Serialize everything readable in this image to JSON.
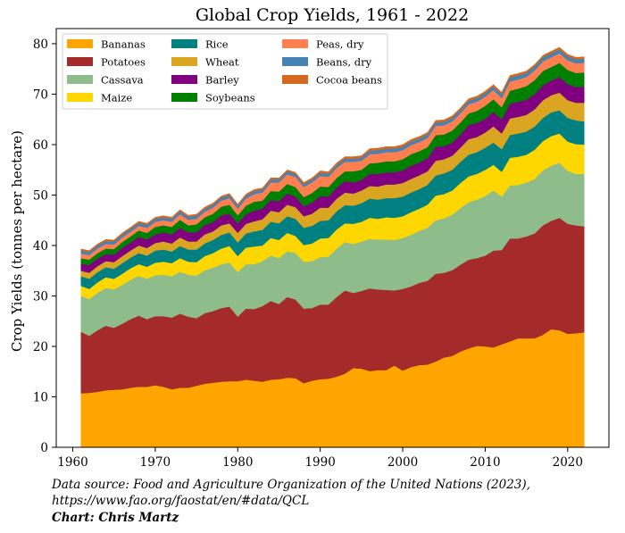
{
  "chart_data": {
    "type": "area",
    "stacked": true,
    "title": "Global Crop Yields, 1961 - 2022",
    "xlabel": "",
    "ylabel": "Crop Yields (tonnes per hectare)",
    "xlim": [
      1958,
      2025
    ],
    "ylim": [
      0,
      83
    ],
    "xticks": [
      1960,
      1970,
      1980,
      1990,
      2000,
      2010,
      2020
    ],
    "yticks": [
      0,
      10,
      20,
      30,
      40,
      50,
      60,
      70,
      80
    ],
    "legend_position": "top-left",
    "x": [
      1961,
      1962,
      1963,
      1964,
      1965,
      1966,
      1967,
      1968,
      1969,
      1970,
      1971,
      1972,
      1973,
      1974,
      1975,
      1976,
      1977,
      1978,
      1979,
      1980,
      1981,
      1982,
      1983,
      1984,
      1985,
      1986,
      1987,
      1988,
      1989,
      1990,
      1991,
      1992,
      1993,
      1994,
      1995,
      1996,
      1997,
      1998,
      1999,
      2000,
      2001,
      2002,
      2003,
      2004,
      2005,
      2006,
      2007,
      2008,
      2009,
      2010,
      2011,
      2012,
      2013,
      2014,
      2015,
      2016,
      2017,
      2018,
      2019,
      2020,
      2021,
      2022
    ],
    "series": [
      {
        "name": "Bananas",
        "color": "#FFA500",
        "values": [
          10.7,
          10.8,
          11.0,
          11.3,
          11.4,
          11.5,
          11.8,
          12.0,
          12.0,
          12.3,
          12.0,
          11.5,
          11.8,
          11.8,
          12.2,
          12.6,
          12.8,
          13.0,
          13.1,
          13.1,
          13.4,
          13.2,
          13.0,
          13.4,
          13.5,
          13.8,
          13.7,
          12.7,
          13.2,
          13.5,
          13.6,
          14.0,
          14.6,
          15.7,
          15.6,
          15.1,
          15.3,
          15.3,
          16.2,
          15.2,
          15.9,
          16.3,
          16.4,
          17.0,
          17.8,
          18.1,
          19.0,
          19.6,
          20.1,
          20.0,
          19.8,
          20.4,
          21.0,
          21.6,
          21.6,
          21.6,
          22.3,
          23.4,
          23.2,
          22.5,
          22.6,
          22.8
        ]
      },
      {
        "name": "Potatoes",
        "color": "#A52A2A",
        "values": [
          12.2,
          11.3,
          12.2,
          12.8,
          12.3,
          13.0,
          13.6,
          14.1,
          13.4,
          13.7,
          14.0,
          14.2,
          14.7,
          14.1,
          13.4,
          14.0,
          14.2,
          14.6,
          14.8,
          12.8,
          14.1,
          14.2,
          15.0,
          15.6,
          14.9,
          16.0,
          15.6,
          14.8,
          14.4,
          14.8,
          14.7,
          15.8,
          16.5,
          14.9,
          15.4,
          16.4,
          16.0,
          15.9,
          14.9,
          16.2,
          16.0,
          16.3,
          16.6,
          17.4,
          16.8,
          17.0,
          17.2,
          17.6,
          17.4,
          18.0,
          19.2,
          18.7,
          20.4,
          19.8,
          20.2,
          20.8,
          21.7,
          21.5,
          22.3,
          21.8,
          21.4,
          21.0
        ]
      },
      {
        "name": "Cassava",
        "color": "#8FBC8B",
        "values": [
          7.1,
          7.3,
          7.4,
          7.5,
          7.6,
          7.7,
          7.8,
          7.9,
          8.0,
          8.1,
          8.2,
          8.2,
          8.3,
          8.3,
          8.4,
          8.5,
          8.6,
          8.7,
          8.7,
          8.8,
          8.8,
          8.9,
          8.9,
          9.0,
          9.1,
          9.1,
          9.2,
          9.3,
          9.3,
          9.4,
          9.5,
          9.6,
          9.6,
          9.7,
          9.8,
          9.8,
          9.9,
          10.0,
          10.0,
          10.1,
          10.2,
          10.3,
          10.5,
          10.6,
          10.8,
          11.0,
          11.2,
          11.4,
          11.6,
          11.8,
          11.9,
          10.6,
          10.5,
          10.6,
          10.7,
          10.8,
          10.9,
          10.9,
          10.9,
          10.5,
          10.2,
          10.4
        ]
      },
      {
        "name": "Maize",
        "color": "#FFD700",
        "values": [
          2.0,
          2.0,
          2.1,
          2.1,
          2.1,
          2.2,
          2.3,
          2.3,
          2.4,
          2.5,
          2.6,
          2.6,
          2.7,
          2.6,
          2.7,
          2.8,
          2.9,
          3.1,
          3.3,
          3.2,
          3.3,
          3.5,
          3.1,
          3.5,
          3.6,
          3.6,
          3.4,
          3.3,
          3.5,
          3.7,
          3.7,
          3.8,
          3.7,
          4.0,
          3.9,
          4.2,
          4.1,
          4.4,
          4.4,
          4.3,
          4.5,
          4.4,
          4.6,
          4.9,
          4.8,
          4.8,
          5.0,
          5.1,
          5.1,
          5.2,
          5.1,
          4.9,
          5.5,
          5.6,
          5.5,
          5.8,
          5.8,
          5.9,
          5.8,
          5.8,
          5.9,
          5.8
        ]
      },
      {
        "name": "Rice",
        "color": "#008080",
        "values": [
          1.9,
          2.0,
          2.0,
          2.0,
          2.0,
          2.1,
          2.1,
          2.2,
          2.2,
          2.4,
          2.4,
          2.3,
          2.4,
          2.4,
          2.5,
          2.5,
          2.6,
          2.7,
          2.7,
          2.7,
          2.8,
          3.0,
          3.1,
          3.2,
          3.3,
          3.3,
          3.4,
          3.4,
          3.5,
          3.5,
          3.5,
          3.6,
          3.6,
          3.6,
          3.7,
          3.8,
          3.8,
          3.8,
          3.9,
          3.9,
          3.9,
          3.9,
          3.9,
          4.0,
          4.1,
          4.1,
          4.2,
          4.3,
          4.3,
          4.4,
          4.4,
          4.5,
          4.5,
          4.6,
          4.6,
          4.6,
          4.6,
          4.7,
          4.6,
          4.7,
          4.7,
          4.6
        ]
      },
      {
        "name": "Wheat",
        "color": "#DAA520",
        "values": [
          1.1,
          1.2,
          1.2,
          1.2,
          1.3,
          1.4,
          1.4,
          1.5,
          1.5,
          1.5,
          1.6,
          1.6,
          1.7,
          1.6,
          1.6,
          1.8,
          1.7,
          1.9,
          1.8,
          1.9,
          1.9,
          2.0,
          2.1,
          2.2,
          2.2,
          2.3,
          2.3,
          2.3,
          2.4,
          2.6,
          2.5,
          2.5,
          2.5,
          2.4,
          2.5,
          2.5,
          2.6,
          2.7,
          2.7,
          2.7,
          2.7,
          2.7,
          2.7,
          2.9,
          2.8,
          2.8,
          2.8,
          3.1,
          3.0,
          3.0,
          3.2,
          3.1,
          3.3,
          3.3,
          3.3,
          3.4,
          3.5,
          3.4,
          3.5,
          3.5,
          3.5,
          3.7
        ]
      },
      {
        "name": "Barley",
        "color": "#800080",
        "values": [
          1.4,
          1.5,
          1.5,
          1.4,
          1.5,
          1.6,
          1.6,
          1.7,
          1.7,
          1.7,
          1.8,
          1.8,
          1.9,
          1.8,
          1.8,
          1.9,
          1.8,
          2.0,
          1.9,
          1.9,
          1.9,
          2.1,
          2.1,
          2.1,
          2.2,
          2.2,
          2.1,
          2.0,
          2.2,
          2.3,
          2.2,
          2.2,
          2.3,
          2.2,
          2.1,
          2.4,
          2.5,
          2.4,
          2.4,
          2.5,
          2.6,
          2.5,
          2.6,
          2.8,
          2.6,
          2.6,
          2.6,
          2.8,
          2.8,
          2.7,
          2.9,
          2.8,
          2.9,
          3.0,
          3.0,
          3.0,
          3.0,
          2.9,
          3.1,
          3.2,
          3.1,
          3.2
        ]
      },
      {
        "name": "Soybeans",
        "color": "#008000",
        "values": [
          1.1,
          1.1,
          1.1,
          1.1,
          1.1,
          1.2,
          1.2,
          1.3,
          1.3,
          1.5,
          1.4,
          1.5,
          1.6,
          1.4,
          1.6,
          1.5,
          1.7,
          1.7,
          1.8,
          1.6,
          1.7,
          1.8,
          1.6,
          1.8,
          1.9,
          1.9,
          1.9,
          1.8,
          1.9,
          1.9,
          1.9,
          1.9,
          1.9,
          2.2,
          2.0,
          2.1,
          2.2,
          2.2,
          2.2,
          2.2,
          2.3,
          2.3,
          2.2,
          2.3,
          2.3,
          2.4,
          2.4,
          2.3,
          2.4,
          2.6,
          2.5,
          2.4,
          2.6,
          2.6,
          2.7,
          2.8,
          2.8,
          2.7,
          2.8,
          2.8,
          2.8,
          2.8
        ]
      },
      {
        "name": "Peas, dry",
        "color": "#FF7F50",
        "values": [
          0.9,
          0.9,
          0.9,
          0.9,
          0.9,
          0.9,
          0.9,
          0.9,
          1.0,
          1.0,
          1.0,
          1.0,
          1.1,
          1.1,
          1.1,
          1.1,
          1.2,
          1.2,
          1.3,
          1.3,
          1.4,
          1.5,
          1.6,
          1.7,
          1.8,
          1.9,
          2.0,
          2.0,
          2.1,
          2.1,
          2.0,
          2.0,
          1.9,
          1.9,
          1.8,
          1.8,
          1.8,
          1.8,
          1.8,
          1.8,
          1.8,
          1.8,
          1.8,
          1.8,
          1.8,
          1.8,
          1.8,
          1.8,
          1.8,
          1.8,
          1.8,
          1.8,
          1.8,
          1.8,
          1.8,
          1.9,
          1.9,
          1.9,
          1.9,
          1.9,
          1.9,
          1.9
        ]
      },
      {
        "name": "Beans, dry",
        "color": "#4682B4",
        "values": [
          0.6,
          0.6,
          0.6,
          0.6,
          0.6,
          0.6,
          0.6,
          0.6,
          0.6,
          0.6,
          0.6,
          0.6,
          0.6,
          0.6,
          0.6,
          0.6,
          0.6,
          0.6,
          0.6,
          0.6,
          0.6,
          0.6,
          0.6,
          0.6,
          0.6,
          0.6,
          0.6,
          0.6,
          0.6,
          0.6,
          0.6,
          0.6,
          0.6,
          0.6,
          0.6,
          0.7,
          0.7,
          0.7,
          0.7,
          0.7,
          0.7,
          0.7,
          0.7,
          0.7,
          0.7,
          0.7,
          0.7,
          0.7,
          0.7,
          0.7,
          0.7,
          0.8,
          0.8,
          0.8,
          0.8,
          0.8,
          0.8,
          0.8,
          0.8,
          0.8,
          0.8,
          0.8
        ]
      },
      {
        "name": "Cocoa beans",
        "color": "#D2691E",
        "values": [
          0.3,
          0.3,
          0.3,
          0.3,
          0.3,
          0.3,
          0.3,
          0.3,
          0.3,
          0.3,
          0.3,
          0.3,
          0.3,
          0.3,
          0.3,
          0.3,
          0.3,
          0.3,
          0.3,
          0.3,
          0.3,
          0.3,
          0.3,
          0.3,
          0.3,
          0.3,
          0.3,
          0.3,
          0.3,
          0.4,
          0.4,
          0.4,
          0.4,
          0.4,
          0.4,
          0.4,
          0.4,
          0.4,
          0.4,
          0.4,
          0.4,
          0.4,
          0.4,
          0.4,
          0.4,
          0.4,
          0.4,
          0.4,
          0.4,
          0.4,
          0.4,
          0.4,
          0.4,
          0.4,
          0.4,
          0.4,
          0.4,
          0.4,
          0.4,
          0.4,
          0.4,
          0.4
        ]
      }
    ]
  },
  "footer": {
    "source_line1": "Data source: Food and Agriculture Organization of the United Nations (2023),",
    "source_line2": "https://www.fao.org/faostat/en/#data/QCL",
    "credit": "Chart: Chris Martz"
  }
}
